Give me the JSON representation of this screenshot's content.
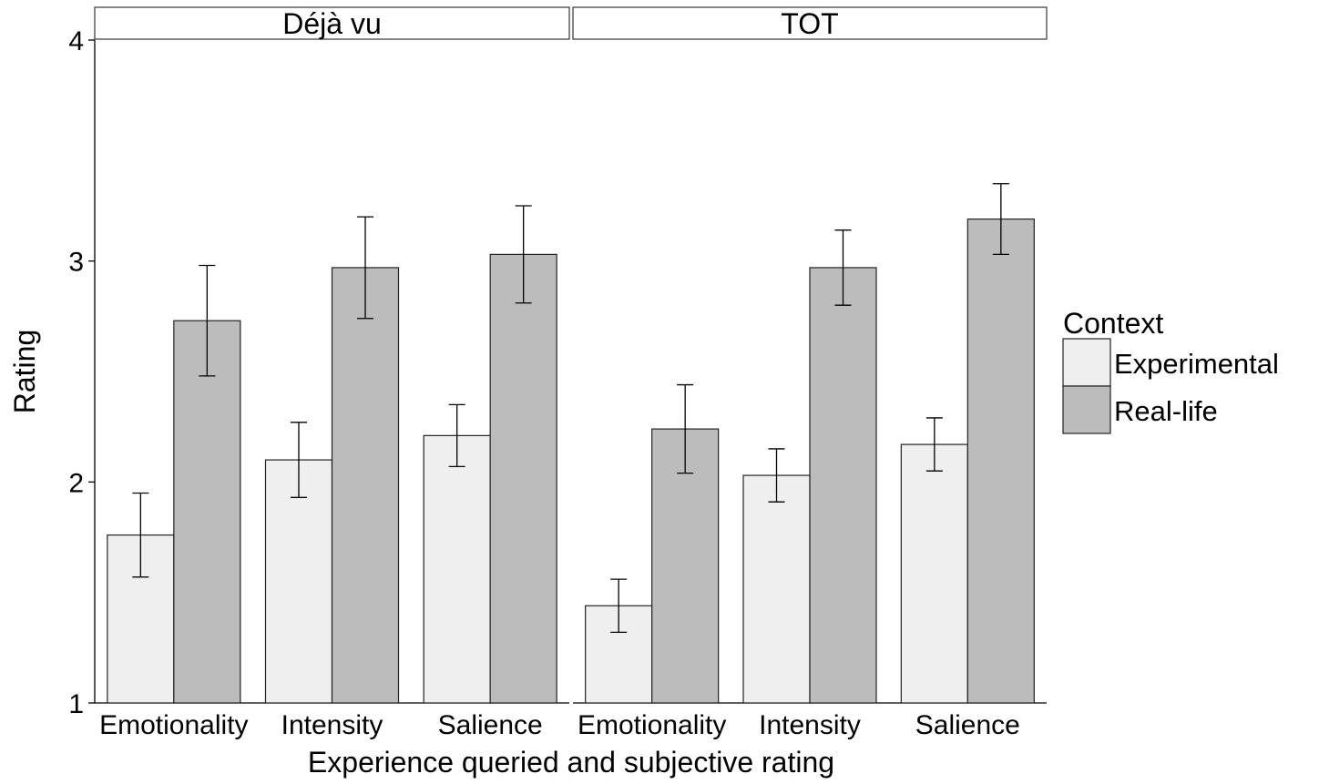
{
  "chart_data": {
    "type": "bar",
    "xlabel": "Experience queried and subjective rating",
    "ylabel": "Rating",
    "ylim": [
      1,
      4
    ],
    "yticks": [
      "1",
      "2",
      "3",
      "4"
    ],
    "grid": false,
    "legend": {
      "title": "Context",
      "position": "right",
      "entries": [
        {
          "label": "Experimental",
          "color": "#efefef"
        },
        {
          "label": "Real-life",
          "color": "#bcbcbc"
        }
      ]
    },
    "categories": [
      "Emotionality",
      "Intensity",
      "Salience"
    ],
    "panels": [
      {
        "title": "Déjà vu",
        "series": [
          {
            "name": "Experimental",
            "values": [
              1.76,
              2.1,
              2.21
            ],
            "err_low": [
              1.57,
              1.93,
              2.07
            ],
            "err_high": [
              1.95,
              2.27,
              2.35
            ]
          },
          {
            "name": "Real-life",
            "values": [
              2.73,
              2.97,
              3.03
            ],
            "err_low": [
              2.48,
              2.74,
              2.81
            ],
            "err_high": [
              2.98,
              3.2,
              3.25
            ]
          }
        ]
      },
      {
        "title": "TOT",
        "series": [
          {
            "name": "Experimental",
            "values": [
              1.44,
              2.03,
              2.17
            ],
            "err_low": [
              1.32,
              1.91,
              2.05
            ],
            "err_high": [
              1.56,
              2.15,
              2.29
            ]
          },
          {
            "name": "Real-life",
            "values": [
              2.24,
              2.97,
              3.19
            ],
            "err_low": [
              2.04,
              2.8,
              3.03
            ],
            "err_high": [
              2.44,
              3.14,
              3.35
            ]
          }
        ]
      }
    ]
  }
}
